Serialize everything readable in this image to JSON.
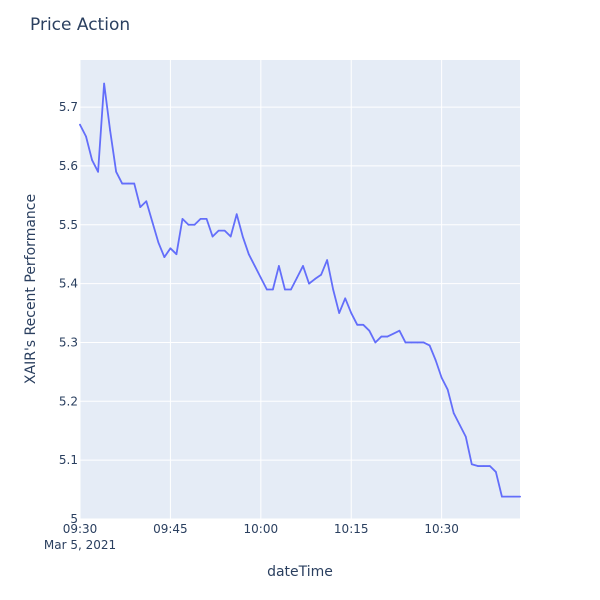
{
  "chart_data": {
    "type": "line",
    "title": "Price Action",
    "xlabel": "dateTime",
    "ylabel": "XAIR's Recent Performance",
    "x_date_label": "Mar 5, 2021",
    "x_start_clock": "09:30",
    "x_range": [
      "09:30",
      "10:43"
    ],
    "ylim": [
      5,
      5.78
    ],
    "x_ticks": [
      "09:30",
      "09:45",
      "10:00",
      "10:15",
      "10:30"
    ],
    "y_ticks": [
      5,
      5.1,
      5.2,
      5.3,
      5.4,
      5.5,
      5.6,
      5.7
    ],
    "y_tick_labels": [
      "5",
      "5.1",
      "5.2",
      "5.3",
      "5.4",
      "5.5",
      "5.6",
      "5.7"
    ],
    "grid": true,
    "colors": {
      "plot_bg": "#e5ecf6",
      "grid": "#ffffff",
      "line": "#636efa",
      "text": "#2a3f5f"
    },
    "series": [
      {
        "x": [
          "09:30",
          "09:31",
          "09:32",
          "09:33",
          "09:34",
          "09:35",
          "09:36",
          "09:37",
          "09:38",
          "09:39",
          "09:40",
          "09:41",
          "09:42",
          "09:43",
          "09:44",
          "09:45",
          "09:46",
          "09:47",
          "09:48",
          "09:49",
          "09:50",
          "09:51",
          "09:52",
          "09:53",
          "09:54",
          "09:55",
          "09:56",
          "09:57",
          "09:58",
          "09:59",
          "10:00",
          "10:01",
          "10:02",
          "10:03",
          "10:04",
          "10:05",
          "10:06",
          "10:07",
          "10:08",
          "10:09",
          "10:10",
          "10:11",
          "10:12",
          "10:13",
          "10:14",
          "10:15",
          "10:16",
          "10:17",
          "10:18",
          "10:19",
          "10:20",
          "10:21",
          "10:22",
          "10:23",
          "10:24",
          "10:25",
          "10:26",
          "10:27",
          "10:28",
          "10:29",
          "10:30",
          "10:31",
          "10:32",
          "10:33",
          "10:34",
          "10:35",
          "10:36",
          "10:37",
          "10:38",
          "10:39",
          "10:40",
          "10:41",
          "10:42",
          "10:43"
        ],
        "values": [
          5.67,
          5.65,
          5.61,
          5.59,
          5.74,
          5.66,
          5.59,
          5.57,
          5.57,
          5.57,
          5.53,
          5.54,
          5.505,
          5.47,
          5.445,
          5.46,
          5.45,
          5.51,
          5.5,
          5.5,
          5.51,
          5.51,
          5.48,
          5.49,
          5.49,
          5.48,
          5.518,
          5.48,
          5.45,
          5.43,
          5.41,
          5.39,
          5.39,
          5.43,
          5.39,
          5.39,
          5.41,
          5.43,
          5.4,
          5.408,
          5.415,
          5.44,
          5.39,
          5.35,
          5.375,
          5.35,
          5.33,
          5.33,
          5.32,
          5.3,
          5.31,
          5.31,
          5.315,
          5.32,
          5.3,
          5.3,
          5.3,
          5.3,
          5.295,
          5.27,
          5.24,
          5.22,
          5.18,
          5.16,
          5.14,
          5.093,
          5.09,
          5.09,
          5.09,
          5.08,
          5.038,
          5.038,
          5.038,
          5.038
        ]
      }
    ]
  }
}
